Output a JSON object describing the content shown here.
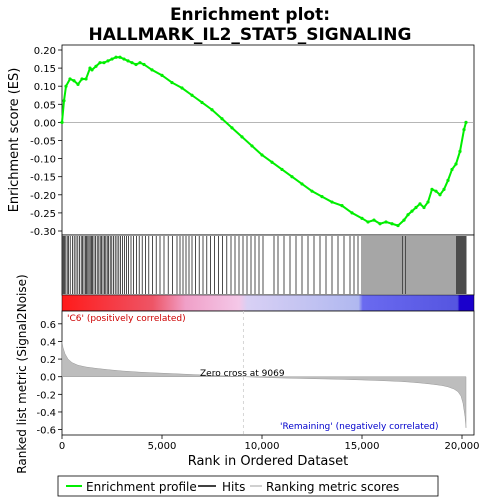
{
  "title_line1": "Enrichment plot:",
  "title_line2": "HALLMARK_IL2_STAT5_SIGNALING",
  "annotations": {
    "pos_label": "'C6' (positively correlated)",
    "neg_label": "'Remaining' (negatively correlated)",
    "zero_cross": "Zero cross at 9069"
  },
  "legend": {
    "items": [
      {
        "label": "Enrichment profile",
        "color": "#00ee00"
      },
      {
        "label": "Hits",
        "color": "#000000"
      },
      {
        "label": "Ranking metric scores",
        "color": "#c0c0c0"
      }
    ]
  },
  "colors": {
    "es_line": "#00ee00",
    "hits": "#000000",
    "metric_fill": "#bdbdbd",
    "pos_color": "#ff0000",
    "neg_color": "#0000ff",
    "zero_line": "#cccccc"
  },
  "chart_data": [
    {
      "type": "line",
      "name": "enrichment-profile",
      "ylabel": "Enrichment score (ES)",
      "xlim": [
        0,
        20600
      ],
      "ylim": [
        -0.3,
        0.2
      ],
      "yticks": [
        "0.20",
        "0.15",
        "0.10",
        "0.05",
        "0.00",
        "-0.05",
        "-0.10",
        "-0.15",
        "-0.20",
        "-0.25",
        "-0.30"
      ],
      "ytick_values": [
        0.2,
        0.15,
        0.1,
        0.05,
        0.0,
        -0.05,
        -0.1,
        -0.15,
        -0.2,
        -0.25,
        -0.3
      ],
      "x": [
        0,
        100,
        200,
        400,
        600,
        800,
        1000,
        1200,
        1400,
        1500,
        1700,
        1900,
        2100,
        2300,
        2500,
        2700,
        2900,
        3100,
        3300,
        3500,
        3700,
        3900,
        4100,
        4500,
        5000,
        5500,
        6000,
        6500,
        7000,
        7500,
        8000,
        8500,
        9000,
        9500,
        10000,
        10500,
        11000,
        11500,
        12000,
        12500,
        13000,
        13500,
        14000,
        14500,
        15000,
        15300,
        15600,
        15900,
        16200,
        16500,
        16800,
        17100,
        17300,
        17500,
        17700,
        17900,
        18100,
        18300,
        18500,
        18700,
        18900,
        19100,
        19300,
        19500,
        19700,
        19900,
        20100,
        20200
      ],
      "y": [
        0.0,
        0.06,
        0.1,
        0.12,
        0.115,
        0.105,
        0.12,
        0.12,
        0.15,
        0.145,
        0.155,
        0.165,
        0.165,
        0.17,
        0.175,
        0.18,
        0.18,
        0.175,
        0.17,
        0.165,
        0.16,
        0.165,
        0.16,
        0.145,
        0.13,
        0.11,
        0.095,
        0.075,
        0.055,
        0.035,
        0.01,
        -0.015,
        -0.04,
        -0.065,
        -0.09,
        -0.11,
        -0.13,
        -0.15,
        -0.17,
        -0.19,
        -0.205,
        -0.22,
        -0.23,
        -0.25,
        -0.265,
        -0.275,
        -0.27,
        -0.28,
        -0.275,
        -0.28,
        -0.285,
        -0.27,
        -0.255,
        -0.245,
        -0.235,
        -0.225,
        -0.235,
        -0.22,
        -0.185,
        -0.19,
        -0.2,
        -0.185,
        -0.16,
        -0.13,
        -0.115,
        -0.08,
        -0.02,
        0.0
      ]
    },
    {
      "type": "bar",
      "name": "hits",
      "xlim": [
        0,
        20600
      ],
      "x": [
        20,
        80,
        130,
        190,
        260,
        330,
        410,
        520,
        610,
        700,
        790,
        880,
        960,
        1030,
        1100,
        1170,
        1230,
        1290,
        1350,
        1410,
        1470,
        1530,
        1600,
        1680,
        1760,
        1840,
        1910,
        1980,
        2050,
        2120,
        2190,
        2260,
        2330,
        2410,
        2490,
        2570,
        2660,
        2750,
        2840,
        2930,
        3020,
        3120,
        3220,
        3330,
        3450,
        3580,
        3720,
        3860,
        4010,
        4170,
        4340,
        4520,
        4710,
        4900,
        5100,
        5310,
        5530,
        5750,
        5900,
        6050,
        6200,
        6350,
        6500,
        6680,
        6860,
        7050,
        7240,
        7430,
        7620,
        7820,
        8030,
        8240,
        8450,
        8650,
        8850,
        9050,
        9250,
        9450,
        9650,
        9850,
        10050,
        10600,
        10800,
        11100,
        11400,
        11700,
        12000,
        12300,
        12600,
        12900,
        13200,
        13500,
        13800,
        14100,
        14400,
        14600,
        14800,
        15000,
        15100,
        15200,
        15300,
        15400,
        15500,
        15600,
        15700,
        15800,
        15900,
        16000,
        16100,
        16200,
        16300,
        16400,
        16500,
        16600,
        16700,
        16800,
        16900,
        17000,
        17050,
        17150,
        17200,
        17300,
        17400,
        17500,
        17600,
        17700,
        17800,
        17900,
        18000,
        18100,
        18200,
        18300,
        18400,
        18500,
        18600,
        18700,
        18800,
        18900,
        19000,
        19100,
        19200,
        19300,
        19400,
        19500,
        19600,
        19700,
        19750,
        19800,
        19850,
        19900,
        19950,
        20000,
        20050,
        20100,
        20150,
        20200
      ]
    },
    {
      "type": "area",
      "name": "ranked-list-metric",
      "ylabel": "Ranked list metric (Signal2Noise)",
      "xlabel": "Rank in Ordered Dataset",
      "xlim": [
        0,
        20600
      ],
      "ylim": [
        -0.65,
        0.7
      ],
      "yticks": [
        "0.6",
        "0.4",
        "0.2",
        "0.0",
        "-0.2",
        "-0.4",
        "-0.6"
      ],
      "ytick_values": [
        0.6,
        0.4,
        0.2,
        0.0,
        -0.2,
        -0.4,
        -0.6
      ],
      "xticks": [
        "0",
        "5,000",
        "10,000",
        "15,000",
        "20,000"
      ],
      "xtick_values": [
        0,
        5000,
        10000,
        15000,
        20000
      ],
      "zero_cross": 9069,
      "x": [
        0,
        50,
        150,
        300,
        500,
        800,
        1200,
        1700,
        2300,
        3000,
        4000,
        5000,
        6000,
        7000,
        8000,
        9069,
        10000,
        11000,
        12000,
        13000,
        14000,
        15000,
        16000,
        17000,
        17500,
        18000,
        18500,
        19000,
        19300,
        19600,
        19800,
        19950,
        20050,
        20150,
        20200
      ],
      "y": [
        0.4,
        0.33,
        0.26,
        0.2,
        0.16,
        0.13,
        0.11,
        0.095,
        0.08,
        0.065,
        0.05,
        0.04,
        0.03,
        0.02,
        0.01,
        0.0,
        -0.008,
        -0.015,
        -0.02,
        -0.025,
        -0.03,
        -0.037,
        -0.045,
        -0.055,
        -0.063,
        -0.073,
        -0.085,
        -0.1,
        -0.115,
        -0.14,
        -0.17,
        -0.22,
        -0.3,
        -0.45,
        -0.58
      ]
    }
  ]
}
